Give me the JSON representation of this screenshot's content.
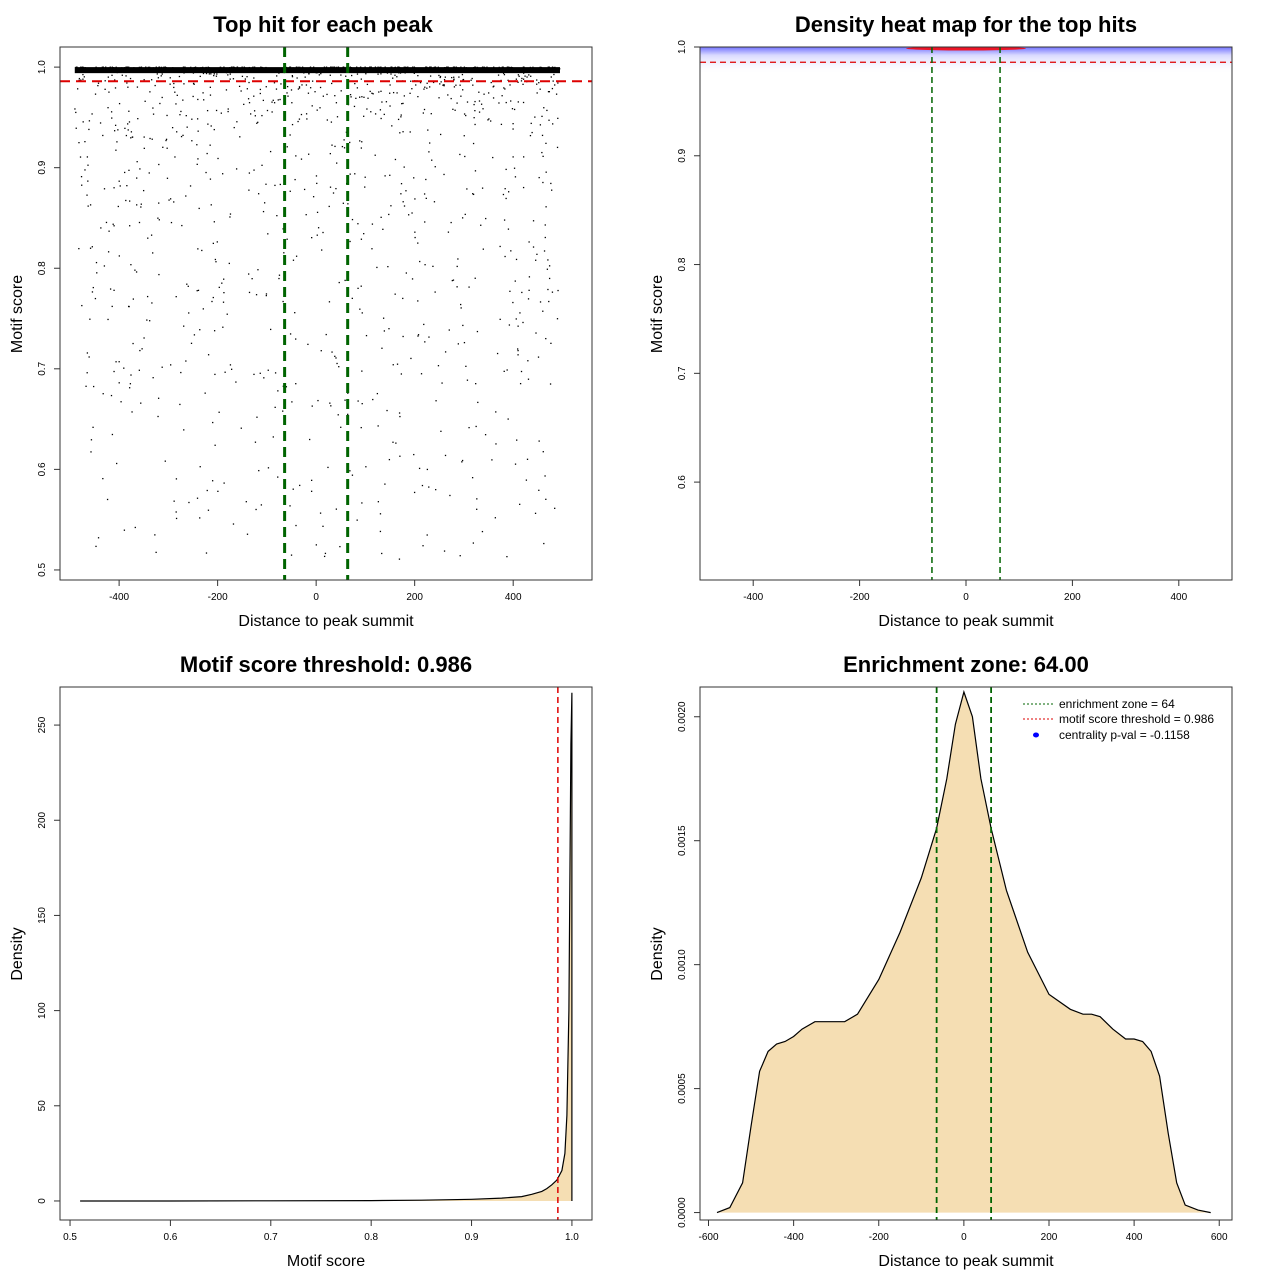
{
  "chart_data": [
    {
      "id": "p1",
      "type": "scatter",
      "title": "Top hit for each peak",
      "xlabel": "Distance to peak summit",
      "ylabel": "Motif score",
      "xlim": [
        -520,
        560
      ],
      "ylim": [
        0.49,
        1.02
      ],
      "xticks": [
        -400,
        -200,
        0,
        200,
        400
      ],
      "xtick_labels": [
        "-400",
        "-200",
        "0",
        "200",
        "400"
      ],
      "yticks": [
        0.5,
        0.6,
        0.7,
        0.8,
        0.9,
        1.0
      ],
      "ytick_labels": [
        "0.5",
        "0.6",
        "0.7",
        "0.8",
        "0.9",
        "1.0"
      ],
      "dense_band": {
        "x_range": [
          -490,
          495
        ],
        "y_range": [
          0.994,
          1.0
        ],
        "color": "#000000"
      },
      "sparse_points": {
        "count": 1300,
        "x_range": [
          -490,
          495
        ],
        "y_min": 0.51
      },
      "vlines": {
        "values": [
          -64,
          64
        ],
        "color": "#006400"
      },
      "hline": {
        "value": 0.986,
        "color": "#dd0000"
      }
    },
    {
      "id": "p2",
      "type": "heatmap",
      "title": "Density heat map for the top hits",
      "xlabel": "Distance to peak summit",
      "ylabel": "Motif score",
      "xlim": [
        -500,
        500
      ],
      "ylim": [
        0.51,
        1.0
      ],
      "xticks": [
        -400,
        -200,
        0,
        200,
        400
      ],
      "xtick_labels": [
        "-400",
        "-200",
        "0",
        "200",
        "400"
      ],
      "yticks": [
        0.6,
        0.7,
        0.8,
        0.9,
        1.0
      ],
      "ytick_labels": [
        "0.6",
        "0.7",
        "0.8",
        "0.9",
        "1.0"
      ],
      "density_colors": [
        "#ffffff",
        "#0000ff",
        "#ff0000"
      ],
      "vlines": {
        "values": [
          -64,
          64
        ],
        "color": "#006400"
      },
      "hline": {
        "value": 0.986,
        "color": "#dd0000"
      }
    },
    {
      "id": "p3",
      "type": "area",
      "title": "Motif score threshold: 0.986",
      "xlabel": "Motif score",
      "ylabel": "Density",
      "xlim": [
        0.49,
        1.02
      ],
      "ylim": [
        -10,
        270
      ],
      "xticks": [
        0.5,
        0.6,
        0.7,
        0.8,
        0.9,
        1.0
      ],
      "xtick_labels": [
        "0.5",
        "0.6",
        "0.7",
        "0.8",
        "0.9",
        "1.0"
      ],
      "yticks": [
        0,
        50,
        100,
        150,
        200,
        250
      ],
      "ytick_labels": [
        "0",
        "50",
        "100",
        "150",
        "200",
        "250"
      ],
      "x": [
        0.51,
        0.6,
        0.7,
        0.8,
        0.85,
        0.9,
        0.93,
        0.95,
        0.96,
        0.97,
        0.975,
        0.98,
        0.985,
        0.99,
        0.993,
        0.995,
        0.997,
        0.998,
        0.999,
        1.0,
        1.0
      ],
      "values": [
        0,
        0,
        0.1,
        0.2,
        0.4,
        0.9,
        1.5,
        2.3,
        3.5,
        5.0,
        6.5,
        8.5,
        11,
        16,
        25,
        45,
        100,
        170,
        240,
        267,
        0
      ],
      "fill": "#f5deb3",
      "vlines": {
        "values": [
          0.986
        ],
        "color": "#dd0000"
      }
    },
    {
      "id": "p4",
      "type": "area",
      "title": "Enrichment zone: 64.00",
      "xlabel": "Distance to peak summit",
      "ylabel": "Density",
      "xlim": [
        -620,
        630
      ],
      "ylim": [
        -3e-05,
        0.00212
      ],
      "xticks": [
        -600,
        -400,
        -200,
        0,
        200,
        400,
        600
      ],
      "xtick_labels": [
        "-600",
        "-400",
        "-200",
        "0",
        "200",
        "400",
        "600"
      ],
      "yticks": [
        0,
        0.0005,
        0.001,
        0.0015,
        0.002
      ],
      "ytick_labels": [
        "0.0000",
        "0.0005",
        "0.0010",
        "0.0015",
        "0.0020"
      ],
      "x": [
        -580,
        -550,
        -520,
        -500,
        -480,
        -460,
        -440,
        -420,
        -400,
        -380,
        -350,
        -320,
        -300,
        -280,
        -250,
        -200,
        -150,
        -100,
        -64,
        -40,
        -20,
        0,
        20,
        40,
        64,
        100,
        150,
        200,
        250,
        280,
        300,
        320,
        350,
        380,
        400,
        420,
        440,
        460,
        480,
        500,
        520,
        550,
        580
      ],
      "values": [
        0.0,
        2e-05,
        0.00012,
        0.00035,
        0.00057,
        0.00065,
        0.00068,
        0.00069,
        0.00071,
        0.00074,
        0.00077,
        0.00077,
        0.00077,
        0.00077,
        0.0008,
        0.00094,
        0.00113,
        0.00135,
        0.00155,
        0.00175,
        0.00197,
        0.0021,
        0.002,
        0.00175,
        0.00155,
        0.0013,
        0.00105,
        0.00088,
        0.00082,
        0.0008,
        0.0008,
        0.00079,
        0.00074,
        0.0007,
        0.0007,
        0.00069,
        0.00065,
        0.00055,
        0.00032,
        0.00012,
        3e-05,
        1e-05,
        0.0
      ],
      "fill": "#f5deb3",
      "vlines": {
        "values": [
          -64,
          64
        ],
        "color": "#006400"
      },
      "legend": {
        "placement": "top-right",
        "entries": [
          {
            "label": "enrichment zone = 64",
            "color": "#006400",
            "style": "dotted-line"
          },
          {
            "label": "motif score threshold = 0.986",
            "color": "#dd0000",
            "style": "dotted-line"
          },
          {
            "label": "centrality p-val = -0.1158",
            "color": "#0000ff",
            "style": "point"
          }
        ]
      }
    }
  ]
}
